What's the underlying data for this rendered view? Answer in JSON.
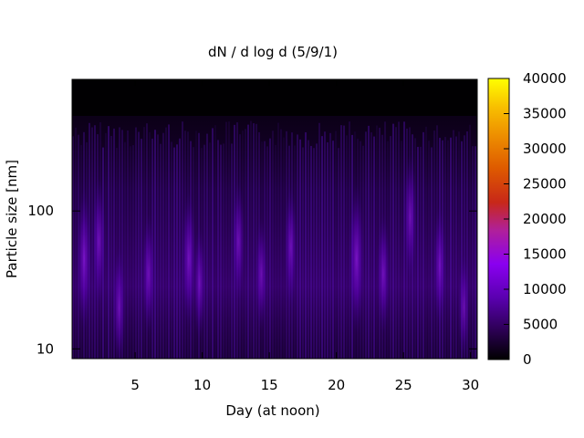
{
  "chart_data": {
    "type": "heatmap",
    "title": "dN / d log d (5/9/1)",
    "xlabel": "Day (at noon)",
    "ylabel": "Particle size [nm]",
    "xlim": [
      0.3,
      30.5
    ],
    "ylim": [
      8.5,
      900
    ],
    "y_scale": "log",
    "x_ticks": [
      5,
      10,
      15,
      20,
      25,
      30
    ],
    "y_ticks": [
      10,
      100
    ],
    "colorbar": {
      "min": 0,
      "max": 40000,
      "ticks": [
        0,
        5000,
        10000,
        15000,
        20000,
        25000,
        30000,
        35000,
        40000
      ],
      "colormap": "gnuplot (black-blue-purple-red-orange-yellow)"
    },
    "grid": false,
    "legend": "none",
    "data_top_nm": 450,
    "hotspots": [
      {
        "day": 1.2,
        "size_nm": 45,
        "value": 12000
      },
      {
        "day": 2.3,
        "size_nm": 60,
        "value": 10000
      },
      {
        "day": 3.8,
        "size_nm": 20,
        "value": 9000
      },
      {
        "day": 6.0,
        "size_nm": 35,
        "value": 9000
      },
      {
        "day": 9.0,
        "size_nm": 45,
        "value": 11000
      },
      {
        "day": 9.8,
        "size_nm": 30,
        "value": 8000
      },
      {
        "day": 12.7,
        "size_nm": 60,
        "value": 9000
      },
      {
        "day": 14.4,
        "size_nm": 35,
        "value": 8000
      },
      {
        "day": 16.6,
        "size_nm": 55,
        "value": 9000
      },
      {
        "day": 21.5,
        "size_nm": 45,
        "value": 13000
      },
      {
        "day": 23.5,
        "size_nm": 35,
        "value": 9000
      },
      {
        "day": 25.5,
        "size_nm": 90,
        "value": 10000
      },
      {
        "day": 27.7,
        "size_nm": 40,
        "value": 9000
      },
      {
        "day": 29.5,
        "size_nm": 20,
        "value": 7000
      }
    ]
  }
}
